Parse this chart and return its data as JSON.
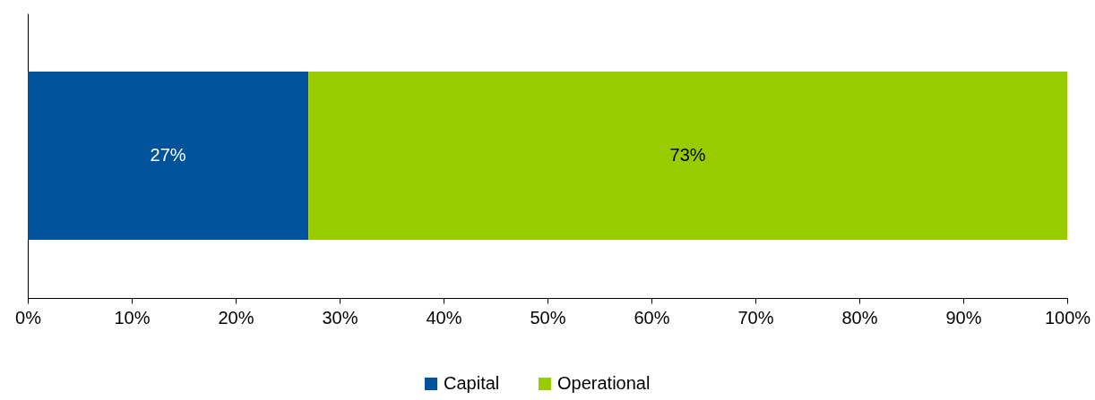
{
  "chart_data": {
    "type": "bar",
    "orientation": "horizontal",
    "stacked": true,
    "categories": [
      null
    ],
    "series": [
      {
        "name": "Capital",
        "color": "#00529b",
        "values": [
          27
        ],
        "value_labels": [
          "27%"
        ]
      },
      {
        "name": "Operational",
        "color": "#99cc00",
        "values": [
          73
        ],
        "value_labels": [
          "73%"
        ]
      }
    ],
    "xlim": [
      0,
      100
    ],
    "xticks": [
      {
        "value": 0,
        "label": "0%"
      },
      {
        "value": 10,
        "label": "10%"
      },
      {
        "value": 20,
        "label": "20%"
      },
      {
        "value": 30,
        "label": "30%"
      },
      {
        "value": 40,
        "label": "40%"
      },
      {
        "value": 50,
        "label": "50%"
      },
      {
        "value": 60,
        "label": "60%"
      },
      {
        "value": 70,
        "label": "70%"
      },
      {
        "value": 80,
        "label": "80%"
      },
      {
        "value": 90,
        "label": "90%"
      },
      {
        "value": 100,
        "label": "100%"
      }
    ],
    "grid": false,
    "legend": "bottom",
    "tick_labels": "x"
  }
}
